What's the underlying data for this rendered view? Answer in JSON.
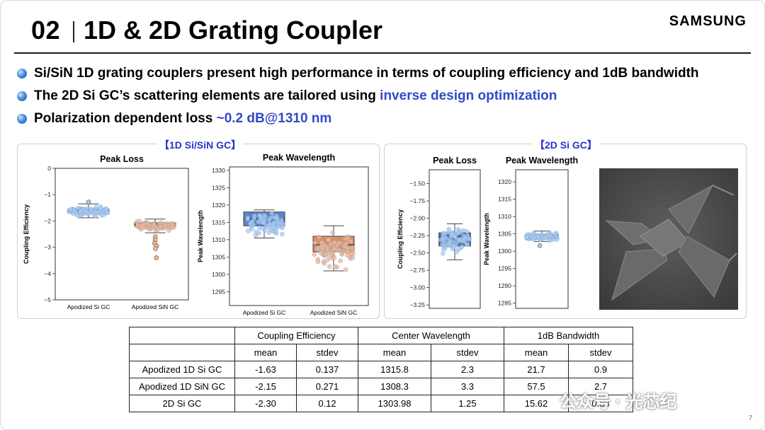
{
  "header": {
    "slide_number": "02",
    "title": "1D & 2D Grating Coupler",
    "brand": "SAMSUNG"
  },
  "bullets": [
    {
      "pre": "Si/SiN 1D grating couplers present high performance in terms of coupling efficiency and 1dB bandwidth",
      "hl": ""
    },
    {
      "pre": "The 2D Si GC’s scattering elements are tailored using ",
      "hl": "inverse design optimization"
    },
    {
      "pre": "Polarization dependent loss ",
      "hl": "~0.2 dB@1310 nm"
    }
  ],
  "panels": {
    "left_label": "【1D Si/SiN GC】",
    "right_label": "【2D Si GC】"
  },
  "chart_data": [
    {
      "type": "box",
      "title": "Peak Loss",
      "ylabel": "Coupling Efficiency",
      "ylim": [
        -5,
        0
      ],
      "yticks": [
        -5,
        -4,
        -3,
        -2,
        -1,
        0
      ],
      "categories": [
        "Apodized Si GC",
        "Apodized SiN GC"
      ],
      "boxes": [
        {
          "name": "Apodized Si GC",
          "color": "#7ba7dd",
          "pointColor": "#a9c9f0",
          "q1": -1.66,
          "median": -1.62,
          "q3": -1.55,
          "whisker_low": -1.88,
          "whisker_high": -1.35,
          "jitter_low": -1.85,
          "jitter_high": -1.4,
          "points": 80,
          "outliers": [
            -1.28
          ]
        },
        {
          "name": "Apodized SiN GC",
          "color": "#e8935c",
          "pointColor": "#f5b58a",
          "q1": -2.2,
          "median": -2.14,
          "q3": -2.07,
          "whisker_low": -2.45,
          "whisker_high": -1.93,
          "jitter_low": -2.4,
          "jitter_high": -1.95,
          "points": 80,
          "outliers": [
            -2.6,
            -2.72,
            -2.85,
            -2.95,
            -3.05,
            -3.4
          ]
        }
      ]
    },
    {
      "type": "box",
      "title": "Peak Wavelength",
      "ylabel": "Peak Wavelength",
      "ylim": [
        1291,
        1331
      ],
      "yticks": [
        1295,
        1300,
        1305,
        1310,
        1315,
        1320,
        1325,
        1330
      ],
      "categories": [
        "Apodized Si GC",
        "Apodized SiN GC"
      ],
      "boxes": [
        {
          "name": "Apodized Si GC",
          "color": "#5b85c8",
          "pointColor": "#a9c9f0",
          "q1": 1314,
          "median": 1316,
          "q3": 1318,
          "whisker_low": 1310.5,
          "whisker_high": 1318.6,
          "jitter_low": 1310.5,
          "jitter_high": 1318.6,
          "points": 70,
          "outliers": []
        },
        {
          "name": "Apodized SiN GC",
          "color": "#d99066",
          "pointColor": "#f5b58a",
          "q1": 1306.5,
          "median": 1308.5,
          "q3": 1311,
          "whisker_low": 1301,
          "whisker_high": 1314,
          "jitter_low": 1301,
          "jitter_high": 1314,
          "points": 90,
          "outliers": []
        }
      ]
    },
    {
      "type": "box",
      "title": "Peak Loss",
      "ylabel": "Coupling Efficiency",
      "ylim": [
        -3.3,
        -1.3
      ],
      "yticks": [
        -3.25,
        -3.0,
        -2.75,
        -2.5,
        -2.25,
        -2.0,
        -1.75,
        -1.5
      ],
      "categories": [],
      "boxes": [
        {
          "name": "2D Si GC",
          "color": "#3d6fa8",
          "pointColor": "#a9c9f0",
          "q1": -2.4,
          "median": -2.32,
          "q3": -2.21,
          "whisker_low": -2.6,
          "whisker_high": -2.08,
          "jitter_low": -2.6,
          "jitter_high": -2.08,
          "points": 70,
          "outliers": []
        }
      ]
    },
    {
      "type": "box",
      "title": "Peak Wavelength",
      "ylabel": "Peak Wavelength",
      "ylim": [
        1283.5,
        1323.5
      ],
      "yticks": [
        1285,
        1290,
        1295,
        1300,
        1305,
        1310,
        1315,
        1320
      ],
      "categories": [],
      "boxes": [
        {
          "name": "2D Si GC",
          "color": "#3d6fa8",
          "pointColor": "#a9c9f0",
          "q1": 1303.6,
          "median": 1304.2,
          "q3": 1304.8,
          "whisker_low": 1302.8,
          "whisker_high": 1305.8,
          "jitter_low": 1302.8,
          "jitter_high": 1305.8,
          "points": 60,
          "outliers": [
            1301.6
          ]
        }
      ]
    }
  ],
  "table": {
    "groups": [
      "Coupling Efficiency",
      "Center Wavelength",
      "1dB Bandwidth"
    ],
    "subheaders": [
      "mean",
      "stdev",
      "mean",
      "stdev",
      "mean",
      "stdev"
    ],
    "rows": [
      {
        "label": "Apodized 1D Si GC",
        "values": [
          "-1.63",
          "0.137",
          "1315.8",
          "2.3",
          "21.7",
          "0.9"
        ]
      },
      {
        "label": "Apodized 1D SiN GC",
        "values": [
          "-2.15",
          "0.271",
          "1308.3",
          "3.3",
          "57.5",
          "2.7"
        ]
      },
      {
        "label": "2D Si GC",
        "values": [
          "-2.30",
          "0.12",
          "1303.98",
          "1.25",
          "15.62",
          "0.83"
        ]
      }
    ]
  },
  "watermark": "公众号 · 光芯纪",
  "page_number": "7"
}
